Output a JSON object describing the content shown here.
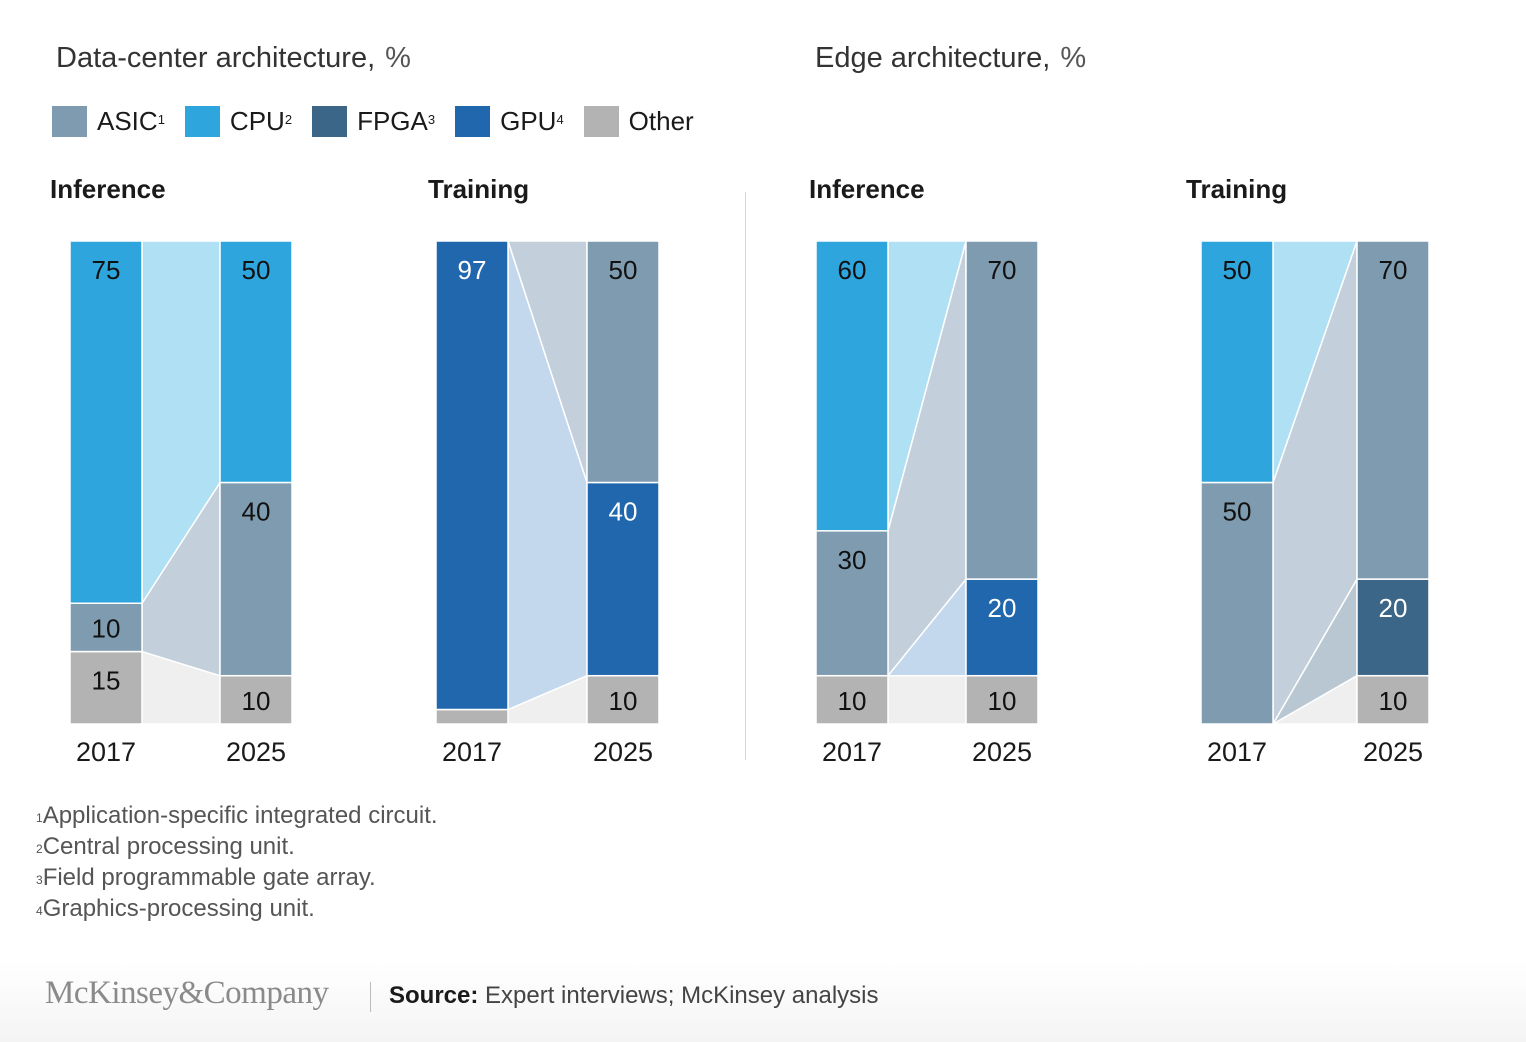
{
  "colors": {
    "ASIC": "#7f9bb0",
    "CPU": "#2ea5dc",
    "FPGA": "#3b6688",
    "GPU": "#2167ad",
    "Other": "#b3b3b3",
    "flow_ASIC": "#c3cfda",
    "flow_CPU": "#b0e0f4",
    "flow_FPGA": "#b8c7d2",
    "flow_GPU": "#c3d8ec",
    "flow_Other": "#efefef"
  },
  "sections": [
    {
      "title": "Data-center architecture,",
      "unit": "%"
    },
    {
      "title": "Edge architecture,",
      "unit": "%"
    }
  ],
  "legend": [
    {
      "key": "ASIC",
      "label": "ASIC",
      "sup": "1"
    },
    {
      "key": "CPU",
      "label": "CPU",
      "sup": "2"
    },
    {
      "key": "FPGA",
      "label": "FPGA",
      "sup": "3"
    },
    {
      "key": "GPU",
      "label": "GPU",
      "sup": "4"
    },
    {
      "key": "Other",
      "label": "Other",
      "sup": ""
    }
  ],
  "chart_data": [
    {
      "type": "bar",
      "subtype": "stacked-100-with-flows",
      "title": "Data-center architecture, % — Inference",
      "categories": [
        "2017",
        "2025"
      ],
      "stack_order_bottom_to_top": [
        "Other",
        "FPGA",
        "GPU",
        "ASIC",
        "CPU"
      ],
      "series": [
        {
          "name": "ASIC",
          "values": [
            10,
            40
          ]
        },
        {
          "name": "CPU",
          "values": [
            75,
            50
          ]
        },
        {
          "name": "FPGA",
          "values": [
            0,
            0
          ]
        },
        {
          "name": "GPU",
          "values": [
            0,
            0
          ]
        },
        {
          "name": "Other",
          "values": [
            15,
            10
          ]
        }
      ],
      "ylim": [
        0,
        100
      ]
    },
    {
      "type": "bar",
      "subtype": "stacked-100-with-flows",
      "title": "Data-center architecture, % — Training",
      "categories": [
        "2017",
        "2025"
      ],
      "stack_order_bottom_to_top": [
        "Other",
        "FPGA",
        "GPU",
        "ASIC",
        "CPU"
      ],
      "series": [
        {
          "name": "ASIC",
          "values": [
            0,
            50
          ]
        },
        {
          "name": "CPU",
          "values": [
            0,
            0
          ]
        },
        {
          "name": "FPGA",
          "values": [
            0,
            0
          ]
        },
        {
          "name": "GPU",
          "values": [
            97,
            40
          ]
        },
        {
          "name": "Other",
          "values": [
            3,
            10
          ]
        }
      ],
      "hidden_labels": [
        {
          "series": "Other",
          "index": 0
        }
      ],
      "ylim": [
        0,
        100
      ]
    },
    {
      "type": "bar",
      "subtype": "stacked-100-with-flows",
      "title": "Edge architecture, % — Inference",
      "categories": [
        "2017",
        "2025"
      ],
      "stack_order_bottom_to_top": [
        "Other",
        "FPGA",
        "GPU",
        "ASIC",
        "CPU"
      ],
      "series": [
        {
          "name": "ASIC",
          "values": [
            30,
            70
          ]
        },
        {
          "name": "CPU",
          "values": [
            60,
            0
          ]
        },
        {
          "name": "FPGA",
          "values": [
            0,
            0
          ]
        },
        {
          "name": "GPU",
          "values": [
            0,
            20
          ]
        },
        {
          "name": "Other",
          "values": [
            10,
            10
          ]
        }
      ],
      "ylim": [
        0,
        100
      ]
    },
    {
      "type": "bar",
      "subtype": "stacked-100-with-flows",
      "title": "Edge architecture, % — Training",
      "categories": [
        "2017",
        "2025"
      ],
      "stack_order_bottom_to_top": [
        "Other",
        "FPGA",
        "GPU",
        "ASIC",
        "CPU"
      ],
      "series": [
        {
          "name": "ASIC",
          "values": [
            50,
            70
          ]
        },
        {
          "name": "CPU",
          "values": [
            50,
            0
          ]
        },
        {
          "name": "FPGA",
          "values": [
            0,
            20
          ]
        },
        {
          "name": "GPU",
          "values": [
            0,
            0
          ]
        },
        {
          "name": "Other",
          "values": [
            0,
            10
          ]
        }
      ],
      "ylim": [
        0,
        100
      ]
    }
  ],
  "panels": [
    {
      "label": "Inference"
    },
    {
      "label": "Training"
    },
    {
      "label": "Inference"
    },
    {
      "label": "Training"
    }
  ],
  "footnotes": [
    {
      "sup": "1",
      "text": "Application-specific integrated circuit."
    },
    {
      "sup": "2",
      "text": "Central processing unit."
    },
    {
      "sup": "3",
      "text": "Field programmable gate array."
    },
    {
      "sup": "4",
      "text": "Graphics-processing unit."
    }
  ],
  "footer": {
    "logo": "McKinsey&Company",
    "source_label": "Source:",
    "source_text": " Expert interviews; McKinsey analysis"
  }
}
